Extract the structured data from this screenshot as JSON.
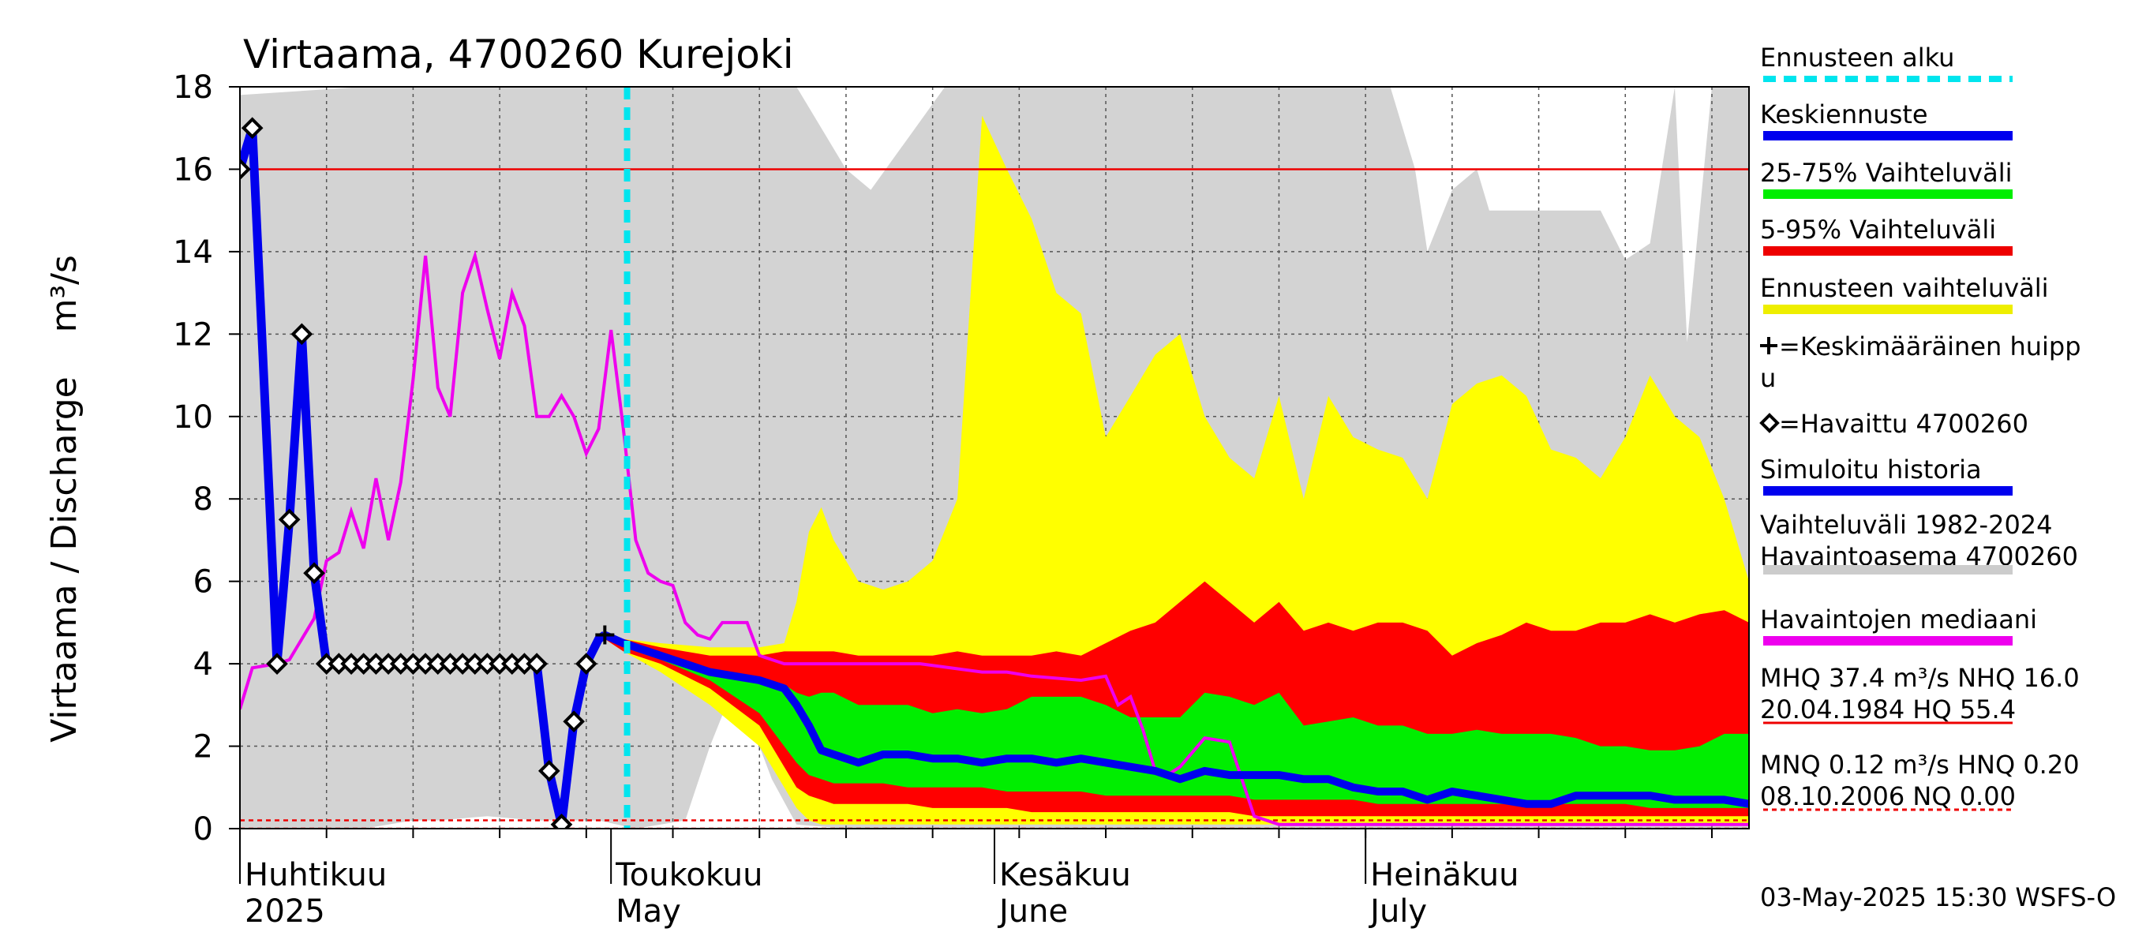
{
  "chart_data": {
    "type": "area",
    "title": "Virtaama, 4700260 Kurejoki",
    "ylabel": "Virtaama / Discharge    m³/s",
    "ylim": [
      0,
      18
    ],
    "yticks": [
      0,
      2,
      4,
      6,
      8,
      10,
      12,
      14,
      16,
      18
    ],
    "xlim_day": [
      0,
      122
    ],
    "x_unit": "days since 2025-03-31",
    "month_labels": [
      {
        "day": 1,
        "fi": "Huhtikuu",
        "en": "2025"
      },
      {
        "day": 31,
        "fi": "Toukokuu",
        "en": "May"
      },
      {
        "day": 62,
        "fi": "Kesäkuu",
        "en": "June"
      },
      {
        "day": 92,
        "fi": "Heinäkuu",
        "en": "July"
      }
    ],
    "forecast_start_day": 31.3,
    "reference_lines": [
      {
        "name": "NHQ",
        "value": 16.0,
        "color": "#ee0000",
        "style": "solid"
      },
      {
        "name": "HNQ",
        "value": 0.2,
        "color": "#ee0000",
        "style": "dashed"
      },
      {
        "name": "NQ",
        "value": 0.0,
        "color": "#ee0000",
        "style": "dashed"
      }
    ],
    "history_range": {
      "name": "Vaihteluväli 1982-2024 Havaintoasema 4700260",
      "color": "#d3d3d3",
      "x": [
        0,
        10,
        14,
        16,
        20,
        24,
        28,
        29,
        32,
        36,
        38,
        40,
        41,
        42,
        43,
        45,
        49,
        51,
        57,
        61,
        70,
        74,
        78,
        82,
        85,
        90,
        93,
        95,
        96,
        98,
        100,
        101,
        103,
        106,
        110,
        112,
        114,
        116,
        117,
        119,
        122
      ],
      "upper": [
        17.8,
        18,
        18,
        18,
        18,
        18,
        18,
        18,
        18,
        18,
        18,
        18,
        18,
        18,
        18,
        18,
        16.0,
        15.5,
        18,
        18,
        18,
        18,
        18,
        18,
        18,
        18,
        18,
        16,
        14.0,
        15.5,
        16.0,
        15.0,
        15.0,
        15.0,
        15.0,
        13.8,
        14.2,
        18,
        11.8,
        18,
        18
      ],
      "lower": [
        0,
        0,
        0.2,
        0.2,
        0.3,
        0.2,
        0.2,
        0.2,
        0.0,
        0.2,
        2.0,
        3.5,
        2.8,
        2.0,
        1.2,
        0.1,
        0.0,
        0.0,
        0.0,
        0.0,
        0.0,
        0.0,
        0.0,
        0.0,
        0.0,
        0.0,
        0.0,
        0.0,
        0.0,
        0.0,
        0.0,
        0.0,
        0.0,
        0.0,
        0.0,
        0.0,
        0.0,
        0.0,
        0.0,
        0.0,
        0.0
      ]
    },
    "forecast_days": [
      29.5,
      31,
      34,
      38,
      42,
      44,
      45,
      46,
      47,
      48,
      50,
      52,
      54,
      56,
      58,
      60,
      62,
      64,
      66,
      68,
      70,
      72,
      74,
      76,
      78,
      80,
      82,
      84,
      86,
      88,
      90,
      92,
      94,
      96,
      98,
      100,
      102,
      104,
      106,
      108,
      110,
      112,
      114,
      116,
      118,
      120,
      122
    ],
    "forecast_range": {
      "name": "Ennusteen vaihteluväli",
      "color": "#ffff00",
      "upper": [
        4.7,
        4.6,
        4.5,
        4.4,
        4.4,
        4.5,
        5.5,
        7.2,
        7.8,
        7.0,
        6.0,
        5.8,
        6.0,
        6.5,
        8.0,
        17.3,
        16.0,
        14.8,
        13.0,
        12.5,
        9.5,
        10.5,
        11.5,
        12.0,
        10.0,
        9.0,
        8.5,
        10.5,
        8.0,
        10.5,
        9.5,
        9.2,
        9.0,
        8.0,
        10.3,
        10.8,
        11.0,
        10.5,
        9.2,
        9.0,
        8.5,
        9.5,
        11.0,
        10.0,
        9.5,
        8.0,
        6.0
      ],
      "lower": [
        4.6,
        4.3,
        3.8,
        3.0,
        2.0,
        1.0,
        0.5,
        0.2,
        0.1,
        0.1,
        0.1,
        0.1,
        0.1,
        0.1,
        0.1,
        0.1,
        0.1,
        0.1,
        0.1,
        0.1,
        0.1,
        0.1,
        0.1,
        0.1,
        0.1,
        0.1,
        0.1,
        0.1,
        0.1,
        0.1,
        0.1,
        0.1,
        0.1,
        0.1,
        0.1,
        0.1,
        0.1,
        0.1,
        0.1,
        0.1,
        0.1,
        0.1,
        0.1,
        0.1,
        0.1,
        0.1,
        0.1
      ]
    },
    "p5_95": {
      "name": "5-95% Vaihteluväli",
      "color": "#ff0000",
      "upper": [
        4.7,
        4.6,
        4.4,
        4.2,
        4.2,
        4.3,
        4.3,
        4.3,
        4.3,
        4.3,
        4.2,
        4.2,
        4.2,
        4.2,
        4.3,
        4.2,
        4.2,
        4.2,
        4.3,
        4.2,
        4.5,
        4.8,
        5.0,
        5.5,
        6.0,
        5.5,
        5.0,
        5.5,
        4.8,
        5.0,
        4.8,
        5.0,
        5.0,
        4.8,
        4.2,
        4.5,
        4.7,
        5.0,
        4.8,
        4.8,
        5.0,
        5.0,
        5.2,
        5.0,
        5.2,
        5.3,
        5.0
      ],
      "lower": [
        4.6,
        4.3,
        4.0,
        3.4,
        2.5,
        1.5,
        1.0,
        0.8,
        0.7,
        0.6,
        0.6,
        0.6,
        0.6,
        0.5,
        0.5,
        0.5,
        0.5,
        0.4,
        0.4,
        0.4,
        0.4,
        0.4,
        0.4,
        0.4,
        0.4,
        0.4,
        0.3,
        0.3,
        0.3,
        0.3,
        0.3,
        0.3,
        0.3,
        0.3,
        0.3,
        0.3,
        0.3,
        0.3,
        0.3,
        0.3,
        0.3,
        0.3,
        0.3,
        0.3,
        0.3,
        0.3,
        0.3
      ]
    },
    "p25_75": {
      "name": "25-75% Vaihteluväli",
      "color": "#00ee00",
      "upper": [
        4.7,
        4.6,
        4.2,
        3.8,
        3.6,
        3.5,
        3.3,
        3.2,
        3.3,
        3.3,
        3.0,
        3.0,
        3.0,
        2.8,
        2.9,
        2.8,
        2.9,
        3.2,
        3.2,
        3.2,
        3.0,
        2.7,
        2.7,
        2.7,
        3.3,
        3.2,
        3.0,
        3.3,
        2.5,
        2.6,
        2.7,
        2.5,
        2.5,
        2.3,
        2.3,
        2.4,
        2.3,
        2.3,
        2.3,
        2.2,
        2.0,
        2.0,
        1.9,
        1.9,
        2.0,
        2.3,
        2.3
      ],
      "lower": [
        4.6,
        4.4,
        4.1,
        3.6,
        2.8,
        2.0,
        1.6,
        1.3,
        1.2,
        1.1,
        1.1,
        1.1,
        1.0,
        1.0,
        1.0,
        1.0,
        0.9,
        0.9,
        0.9,
        0.9,
        0.8,
        0.8,
        0.8,
        0.8,
        0.8,
        0.8,
        0.7,
        0.7,
        0.7,
        0.7,
        0.7,
        0.6,
        0.6,
        0.6,
        0.6,
        0.6,
        0.6,
        0.6,
        0.6,
        0.6,
        0.6,
        0.6,
        0.5,
        0.5,
        0.5,
        0.5,
        0.5
      ]
    },
    "mean_forecast": {
      "name": "Keskiennuste",
      "color": "#0000ee",
      "values": [
        4.7,
        4.5,
        4.2,
        3.8,
        3.6,
        3.4,
        3.0,
        2.5,
        1.9,
        1.8,
        1.6,
        1.8,
        1.8,
        1.7,
        1.7,
        1.6,
        1.7,
        1.7,
        1.6,
        1.7,
        1.6,
        1.5,
        1.4,
        1.2,
        1.4,
        1.3,
        1.3,
        1.3,
        1.2,
        1.2,
        1.0,
        0.9,
        0.9,
        0.7,
        0.9,
        0.8,
        0.7,
        0.6,
        0.6,
        0.8,
        0.8,
        0.8,
        0.8,
        0.7,
        0.7,
        0.7,
        0.6
      ]
    },
    "median_history": {
      "name": "Havaintojen mediaani",
      "color": "#ee00ee",
      "x": [
        0,
        1,
        3,
        4,
        6,
        7,
        8,
        9,
        10,
        11,
        12,
        13,
        14,
        15,
        16,
        17,
        18,
        19,
        20,
        21,
        22,
        23,
        24,
        25,
        26,
        27,
        28,
        29,
        30,
        31,
        32,
        33,
        34,
        35,
        36,
        37,
        38,
        39,
        40,
        41,
        42,
        43,
        44,
        46,
        50,
        55,
        60,
        62,
        64,
        68,
        70,
        71,
        72,
        73,
        74,
        75,
        76,
        78,
        80,
        82,
        84,
        122
      ],
      "values": [
        2.9,
        3.9,
        4.0,
        4.1,
        5.1,
        6.5,
        6.7,
        7.7,
        6.8,
        8.5,
        7.0,
        8.4,
        10.9,
        13.9,
        10.7,
        10.0,
        13.0,
        13.9,
        12.6,
        11.4,
        13.0,
        12.2,
        10.0,
        10.0,
        10.5,
        10.0,
        9.1,
        9.7,
        12.1,
        9.7,
        7.0,
        6.2,
        6.0,
        5.9,
        5.0,
        4.7,
        4.6,
        5.0,
        5.0,
        5.0,
        4.2,
        4.1,
        4.0,
        4.0,
        4.0,
        4.0,
        3.8,
        3.8,
        3.7,
        3.6,
        3.7,
        3.0,
        3.2,
        2.4,
        1.4,
        1.3,
        1.5,
        2.2,
        2.1,
        0.3,
        0.1,
        0.1
      ]
    },
    "simulated_history": {
      "name": "Simuloitu historia",
      "color": "#0000ee",
      "x": [
        0,
        1,
        3,
        4,
        5,
        6,
        7,
        8,
        9,
        10,
        11,
        12,
        13,
        14,
        15,
        16,
        17,
        18,
        19,
        20,
        21,
        22,
        23,
        24,
        25,
        26,
        27,
        28,
        29,
        29.5
      ],
      "values": [
        16.0,
        17.0,
        4.0,
        7.5,
        12.0,
        6.2,
        4.0,
        4.0,
        4.0,
        4.0,
        4.0,
        4.0,
        4.0,
        4.0,
        4.0,
        4.0,
        4.0,
        4.0,
        4.0,
        4.0,
        4.0,
        4.0,
        4.0,
        4.0,
        1.4,
        0.1,
        2.6,
        4.0,
        4.6,
        4.7
      ]
    },
    "observed": {
      "name": "=Havaittu 4700260",
      "x": [
        0,
        1,
        3,
        4,
        5,
        6,
        7,
        8,
        9,
        10,
        11,
        12,
        13,
        14,
        15,
        16,
        17,
        18,
        19,
        20,
        21,
        22,
        23,
        24,
        25,
        26,
        27,
        28
      ],
      "values": [
        16.0,
        17.0,
        4.0,
        7.5,
        12.0,
        6.2,
        4.0,
        4.0,
        4.0,
        4.0,
        4.0,
        4.0,
        4.0,
        4.0,
        4.0,
        4.0,
        4.0,
        4.0,
        4.0,
        4.0,
        4.0,
        4.0,
        4.0,
        4.0,
        1.4,
        0.1,
        2.6,
        4.0
      ]
    },
    "mean_peak": {
      "name": "=Keskimääräinen huippu",
      "day": 29.5,
      "value": 4.7
    },
    "legend": [
      {
        "key": "start",
        "label": "Ennusteen alku",
        "color": "#00e5ee",
        "style": "dashed"
      },
      {
        "key": "mean",
        "label": "Keskiennuste",
        "color": "#0000ee",
        "style": "solid"
      },
      {
        "key": "p2575",
        "label": "25-75% Vaihteluväli",
        "color": "#00ee00",
        "style": "solid"
      },
      {
        "key": "p595",
        "label": "5-95% Vaihteluväli",
        "color": "#ee0000",
        "style": "solid"
      },
      {
        "key": "range",
        "label": "Ennusteen vaihteluväli",
        "color": "#eeee00",
        "style": "solid"
      },
      {
        "key": "peak",
        "label_lines": [
          "=Keskimääräinen huipp",
          "u"
        ],
        "marker": "plus"
      },
      {
        "key": "obs",
        "label": "=Havaittu 4700260",
        "marker": "diamond"
      },
      {
        "key": "sim",
        "label": "Simuloitu historia",
        "color": "#0000ee",
        "style": "solid"
      },
      {
        "key": "hist",
        "label_lines": [
          "Vaihteluväli 1982-2024",
          " Havaintoasema 4700260"
        ],
        "color": "#cccccc",
        "style": "solid"
      },
      {
        "key": "median",
        "label": "Havaintojen mediaani",
        "color": "#ee00ee",
        "style": "solid"
      },
      {
        "key": "mhq",
        "label_lines": [
          "MHQ 37.4 m³/s NHQ 16.0",
          "20.04.1984 HQ 55.4"
        ],
        "color": "#ee0000",
        "style": "solid"
      },
      {
        "key": "mnq",
        "label_lines": [
          "MNQ 0.12 m³/s HNQ 0.20",
          "08.10.2006 NQ 0.00"
        ],
        "color": "#ee0000",
        "style": "dashed"
      }
    ]
  },
  "footer": "03-May-2025 15:30 WSFS-O"
}
